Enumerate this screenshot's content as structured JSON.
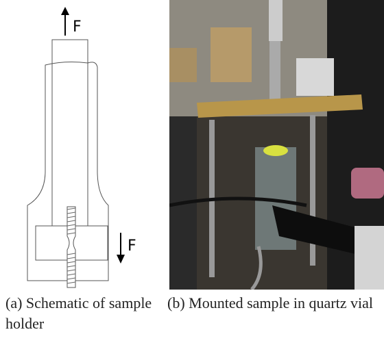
{
  "panels": [
    {
      "label": "(a) Schematic of sample holder",
      "force_top": "F",
      "force_bottom": "F"
    },
    {
      "label": "(b) Mounted sample in quartz vial"
    }
  ]
}
